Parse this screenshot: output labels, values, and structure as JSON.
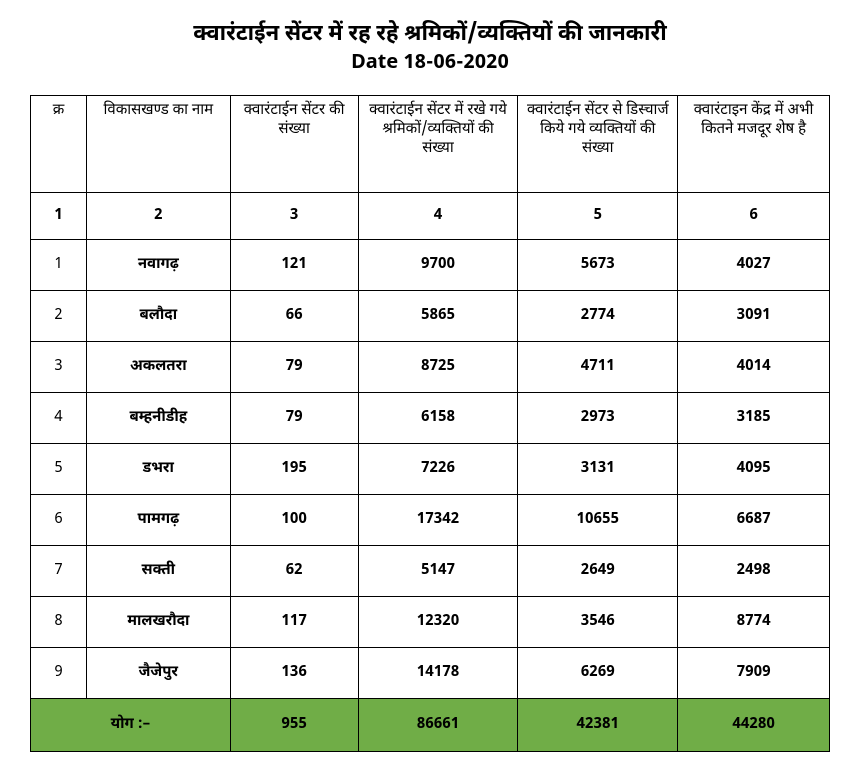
{
  "title": "क्वारंटाईन सेंटर में रह रहे श्रमिकों/व्यक्तियों की जानकारी",
  "date": "Date 18-06-2020",
  "columns": [
    "क्र",
    "विकासखण्ड का नाम",
    "क्वारंटाईन सेंटर की संख्या",
    "क्वारंटाईन सेंटर में रखे गये श्रमिकों/व्यक्तियों की संख्या",
    "क्वारंटाईन सेंटर से डिस्चार्ज किये गये व्यक्तियों की संख्या",
    "क्वारंटाइन केंद्र में अभी कितने मजदूर शेष है"
  ],
  "col_numbers": [
    "1",
    "2",
    "3",
    "4",
    "5",
    "6"
  ],
  "rows": [
    {
      "sr": "1",
      "name": "नवागढ़",
      "c3": "121",
      "c4": "9700",
      "c5": "5673",
      "c6": "4027"
    },
    {
      "sr": "2",
      "name": "बलौदा",
      "c3": "66",
      "c4": "5865",
      "c5": "2774",
      "c6": "3091"
    },
    {
      "sr": "3",
      "name": "अकलतरा",
      "c3": "79",
      "c4": "8725",
      "c5": "4711",
      "c6": "4014"
    },
    {
      "sr": "4",
      "name": "बम्हनीडीह",
      "c3": "79",
      "c4": "6158",
      "c5": "2973",
      "c6": "3185"
    },
    {
      "sr": "5",
      "name": "डभरा",
      "c3": "195",
      "c4": "7226",
      "c5": "3131",
      "c6": "4095"
    },
    {
      "sr": "6",
      "name": "पामगढ़",
      "c3": "100",
      "c4": "17342",
      "c5": "10655",
      "c6": "6687"
    },
    {
      "sr": "7",
      "name": "सक्ती",
      "c3": "62",
      "c4": "5147",
      "c5": "2649",
      "c6": "2498"
    },
    {
      "sr": "8",
      "name": "मालखरौदा",
      "c3": "117",
      "c4": "12320",
      "c5": "3546",
      "c6": "8774"
    },
    {
      "sr": "9",
      "name": "जैजेपुर",
      "c3": "136",
      "c4": "14178",
      "c5": "6269",
      "c6": "7909"
    }
  ],
  "total": {
    "label": "योग :–",
    "c3": "955",
    "c4": "86661",
    "c5": "42381",
    "c6": "44280"
  },
  "col_widths": [
    "7%",
    "18%",
    "16%",
    "20%",
    "20%",
    "19%"
  ],
  "colors": {
    "total_bg": "#70ad47",
    "border": "#000000",
    "background": "#ffffff"
  },
  "typography": {
    "title_fontsize": 22,
    "date_fontsize": 20,
    "cell_fontsize": 15
  }
}
